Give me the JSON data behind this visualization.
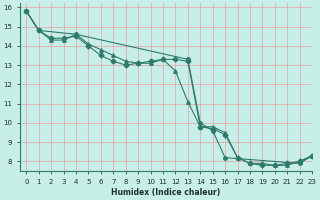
{
  "xlabel": "Humidex (Indice chaleur)",
  "bg_color": "#c8eee8",
  "line_color": "#2e7b6b",
  "grid_color": "#e8a0a0",
  "xlim": [
    -0.5,
    23
  ],
  "ylim": [
    7.5,
    16.2
  ],
  "xticks": [
    0,
    1,
    2,
    3,
    4,
    5,
    6,
    7,
    8,
    9,
    10,
    11,
    12,
    13,
    14,
    15,
    16,
    17,
    18,
    19,
    20,
    21,
    22,
    23
  ],
  "yticks": [
    8,
    9,
    10,
    11,
    12,
    13,
    14,
    15,
    16
  ],
  "line1_x": [
    0,
    1,
    2,
    3,
    4,
    5,
    6,
    7,
    8,
    9,
    10,
    11,
    12,
    13,
    14,
    15,
    16,
    17,
    18,
    19,
    20,
    21,
    22,
    23
  ],
  "line1_y": [
    15.8,
    14.8,
    14.3,
    14.3,
    14.6,
    14.1,
    13.8,
    13.5,
    13.2,
    13.1,
    13.1,
    13.3,
    12.7,
    11.1,
    9.8,
    9.8,
    9.5,
    8.2,
    7.9,
    7.9,
    7.8,
    7.8,
    8.0,
    8.3
  ],
  "line2_x": [
    0,
    1,
    2,
    3,
    4,
    5,
    6,
    7,
    8,
    9,
    10,
    11,
    12,
    13,
    14,
    15,
    16,
    17,
    18,
    19,
    20,
    21,
    22,
    23
  ],
  "line2_y": [
    15.8,
    14.8,
    14.4,
    14.4,
    14.5,
    14.0,
    13.5,
    13.2,
    13.0,
    13.1,
    13.2,
    13.3,
    13.3,
    13.2,
    9.8,
    9.7,
    9.4,
    8.2,
    7.9,
    7.8,
    7.8,
    7.9,
    8.0,
    8.3
  ],
  "line3_x": [
    0,
    1,
    4,
    13,
    14,
    15,
    16,
    22,
    23
  ],
  "line3_y": [
    15.8,
    14.8,
    14.6,
    13.3,
    10.0,
    9.6,
    8.2,
    7.9,
    8.3
  ]
}
